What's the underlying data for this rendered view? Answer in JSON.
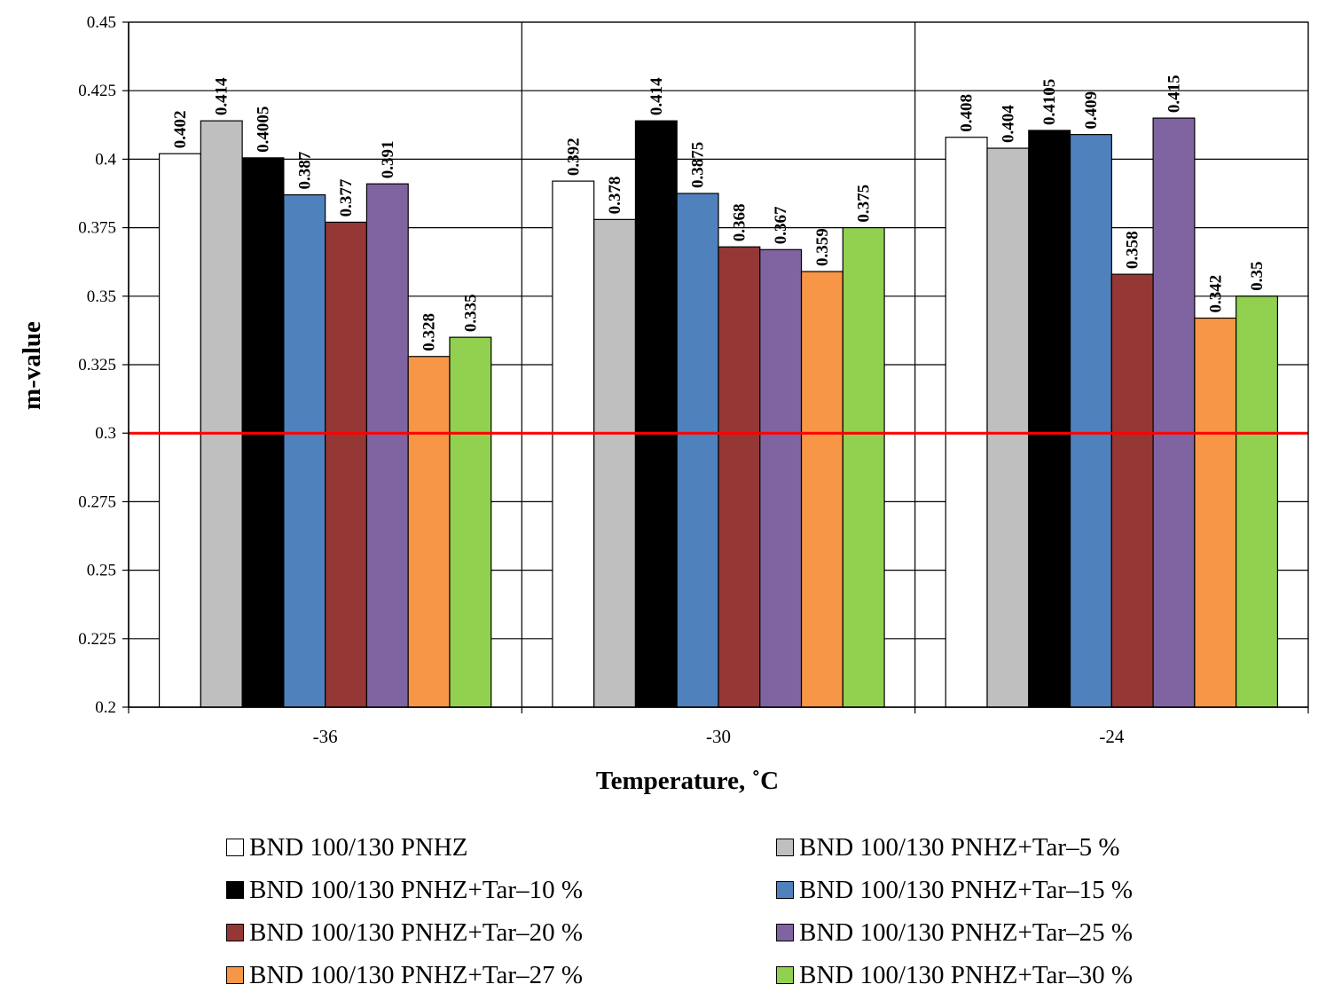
{
  "chart_data": {
    "type": "bar",
    "title": "",
    "xlabel": "Temperature, ˚C",
    "ylabel": "m-value",
    "ylim": [
      0.2,
      0.45
    ],
    "yticks": [
      "0.2",
      "0.225",
      "0.25",
      "0.275",
      "0.3",
      "0.325",
      "0.35",
      "0.375",
      "0.4",
      "0.425",
      "0.45"
    ],
    "grid": true,
    "categories": [
      "-36",
      "-30",
      "-24"
    ],
    "reference_line": {
      "value": 0.3,
      "color": "#ff0000"
    },
    "series": [
      {
        "name": "BND 100/130 PNHZ",
        "color": "#ffffff",
        "values": [
          0.402,
          0.392,
          0.408
        ],
        "labels": [
          "0.402",
          "0.392",
          "0.408"
        ]
      },
      {
        "name": "BND 100/130 PNHZ+Tar–5 %",
        "color": "#bfbfbf",
        "values": [
          0.414,
          0.378,
          0.404
        ],
        "labels": [
          "0.414",
          "0.378",
          "0.404"
        ]
      },
      {
        "name": "BND 100/130 PNHZ+Tar–10 %",
        "color": "#000000",
        "values": [
          0.4005,
          0.414,
          0.4105
        ],
        "labels": [
          "0.4005",
          "0.414",
          "0.4105"
        ]
      },
      {
        "name": "BND 100/130 PNHZ+Tar–15 %",
        "color": "#4f81bd",
        "values": [
          0.387,
          0.3875,
          0.409
        ],
        "labels": [
          "0.387",
          "0.3875",
          "0.409"
        ]
      },
      {
        "name": "BND 100/130 PNHZ+Tar–20 %",
        "color": "#953735",
        "values": [
          0.377,
          0.368,
          0.358
        ],
        "labels": [
          "0.377",
          "0.368",
          "0.358"
        ]
      },
      {
        "name": "BND 100/130 PNHZ+Tar–25 %",
        "color": "#8064a2",
        "values": [
          0.391,
          0.367,
          0.415
        ],
        "labels": [
          "0.391",
          "0.367",
          "0.415"
        ]
      },
      {
        "name": "BND 100/130 PNHZ+Tar–27 %",
        "color": "#f79646",
        "values": [
          0.328,
          0.359,
          0.342
        ],
        "labels": [
          "0.328",
          "0.359",
          "0.342"
        ]
      },
      {
        "name": "BND 100/130 PNHZ+Tar–30 %",
        "color": "#92d050",
        "values": [
          0.335,
          0.375,
          0.35
        ],
        "labels": [
          "0.335",
          "0.375",
          "0.35"
        ]
      }
    ]
  }
}
